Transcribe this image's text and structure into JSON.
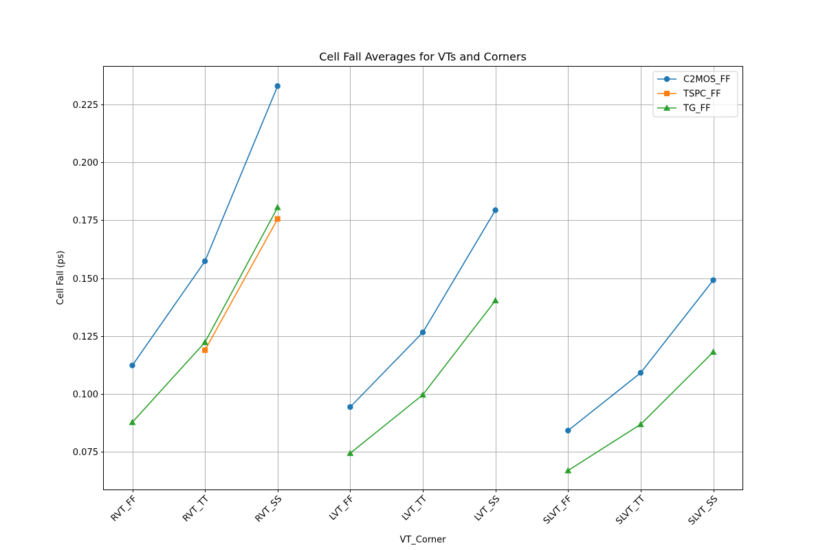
{
  "chart_data": {
    "type": "line",
    "title": "Cell Fall Averages for VTs and Corners",
    "xlabel": "VT_Corner",
    "ylabel": "Cell Fall (ps)",
    "categories": [
      "RVT_FF",
      "RVT_TT",
      "RVT_SS",
      "LVT_FF",
      "LVT_TT",
      "LVT_SS",
      "SLVT_FF",
      "SLVT_TT",
      "SLVT_SS"
    ],
    "ylim": [
      0.0585,
      0.2415
    ],
    "yticks": [
      0.075,
      0.1,
      0.125,
      0.15,
      0.175,
      0.2,
      0.225
    ],
    "ytick_labels": [
      "0.075",
      "0.100",
      "0.125",
      "0.150",
      "0.175",
      "0.200",
      "0.225"
    ],
    "grid": true,
    "legend_position": "top-right",
    "series": [
      {
        "name": "C2MOS_FF",
        "color": "#1f77b4",
        "marker": "circle",
        "values": [
          0.1122,
          0.1573,
          0.2331,
          0.0942,
          0.1265,
          0.1794,
          0.084,
          0.109,
          0.1491
        ]
      },
      {
        "name": "TSPC_FF",
        "color": "#ff7f0e",
        "marker": "square",
        "values": [
          null,
          0.1188,
          0.1756,
          null,
          null,
          null,
          null,
          null,
          null
        ]
      },
      {
        "name": "TG_FF",
        "color": "#2ca02c",
        "marker": "triangle",
        "values": [
          0.0876,
          0.1222,
          0.1806,
          0.0742,
          0.0995,
          0.1403,
          0.0667,
          0.0867,
          0.118
        ]
      }
    ],
    "segments": [
      [
        0,
        2
      ],
      [
        3,
        5
      ],
      [
        6,
        8
      ]
    ]
  }
}
